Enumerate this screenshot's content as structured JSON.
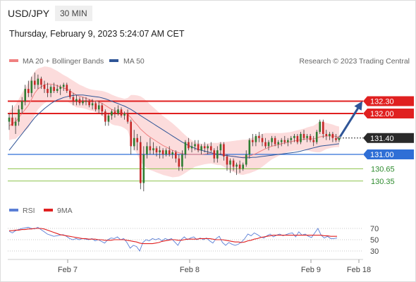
{
  "header": {
    "pair": "USD/JPY",
    "timeframe": "30 MIN",
    "timestamp": "Thursday, February 9, 2023 5:24:07 AM CET"
  },
  "legend": {
    "ma20": {
      "label": "MA 20 + Bollinger Bands",
      "color": "#f08080"
    },
    "ma50": {
      "label": "MA 50",
      "color": "#2f5597"
    },
    "credit": "Research © 2023 Trading Central"
  },
  "colors": {
    "bull": "#2e7d32",
    "bear": "#c62828",
    "band": "#fbd0d0",
    "resistance": "#e02020",
    "pivot": "#2f6fd6",
    "support": "#8bc34a",
    "support_text": "#2e8b2e",
    "current": "#2a2a2a",
    "arrow": "#2f5597",
    "rsi": "#5b7fd6",
    "rsi_ma": "#e02020"
  },
  "chart_data": [
    {
      "type": "candlestick",
      "title": "USD/JPY",
      "ylim": [
        129.95,
        133.05
      ],
      "x_ticks": [
        "Feb 7",
        "Feb 8",
        "Feb 9",
        "Feb 18"
      ],
      "ohlc": [
        [
          131.8,
          132.0,
          131.6,
          131.9
        ],
        [
          131.9,
          132.2,
          131.7,
          131.7
        ],
        [
          131.7,
          131.9,
          131.5,
          131.8
        ],
        [
          131.8,
          132.2,
          131.7,
          132.1
        ],
        [
          132.1,
          132.4,
          132.0,
          132.3
        ],
        [
          132.3,
          132.7,
          132.2,
          132.6
        ],
        [
          132.6,
          132.8,
          132.4,
          132.5
        ],
        [
          132.5,
          132.9,
          132.4,
          132.8
        ],
        [
          132.8,
          133.0,
          132.6,
          132.7
        ],
        [
          132.7,
          132.95,
          132.6,
          132.85
        ],
        [
          132.85,
          132.9,
          132.6,
          132.7
        ],
        [
          132.7,
          132.8,
          132.5,
          132.6
        ],
        [
          132.6,
          132.75,
          132.4,
          132.5
        ],
        [
          132.5,
          132.7,
          132.4,
          132.65
        ],
        [
          132.65,
          132.75,
          132.5,
          132.55
        ],
        [
          132.55,
          132.7,
          132.5,
          132.6
        ],
        [
          132.6,
          132.7,
          132.45,
          132.65
        ],
        [
          132.65,
          132.75,
          132.55,
          132.7
        ],
        [
          132.7,
          132.75,
          132.5,
          132.55
        ],
        [
          132.55,
          132.6,
          132.35,
          132.4
        ],
        [
          132.4,
          132.5,
          132.2,
          132.3
        ],
        [
          132.3,
          132.45,
          132.2,
          132.35
        ],
        [
          132.35,
          132.4,
          132.2,
          132.25
        ],
        [
          132.25,
          132.4,
          132.2,
          132.3
        ],
        [
          132.3,
          132.4,
          132.2,
          132.3
        ],
        [
          132.3,
          132.35,
          132.15,
          132.2
        ],
        [
          132.2,
          132.35,
          132.1,
          132.25
        ],
        [
          132.25,
          132.3,
          132.05,
          132.1
        ],
        [
          132.1,
          132.3,
          132.0,
          132.2
        ],
        [
          132.2,
          132.25,
          131.95,
          132.05
        ],
        [
          132.05,
          132.1,
          131.7,
          131.8
        ],
        [
          131.8,
          132.0,
          131.7,
          131.95
        ],
        [
          131.95,
          132.1,
          131.85,
          132.05
        ],
        [
          132.05,
          132.15,
          131.9,
          132.0
        ],
        [
          132.0,
          132.2,
          131.95,
          132.1
        ],
        [
          132.1,
          132.15,
          131.9,
          131.95
        ],
        [
          131.95,
          132.05,
          131.85,
          132.0
        ],
        [
          132.0,
          132.1,
          131.75,
          131.8
        ],
        [
          131.8,
          131.85,
          131.0,
          131.2
        ],
        [
          131.2,
          131.6,
          131.1,
          131.4
        ],
        [
          131.4,
          131.5,
          131.1,
          131.3
        ],
        [
          131.3,
          131.45,
          130.15,
          130.3
        ],
        [
          130.3,
          131.2,
          130.1,
          131.0
        ],
        [
          131.0,
          131.3,
          130.9,
          131.2
        ],
        [
          131.2,
          131.4,
          131.0,
          131.1
        ],
        [
          131.1,
          131.3,
          131.0,
          131.15
        ],
        [
          131.15,
          131.2,
          130.95,
          131.05
        ],
        [
          131.05,
          131.2,
          130.9,
          131.1
        ],
        [
          131.1,
          131.15,
          130.9,
          131.0
        ],
        [
          131.0,
          131.15,
          130.95,
          131.1
        ],
        [
          131.1,
          131.2,
          130.95,
          131.0
        ],
        [
          131.0,
          131.1,
          130.9,
          131.05
        ],
        [
          131.05,
          131.1,
          130.8,
          130.9
        ],
        [
          130.9,
          131.0,
          130.6,
          130.7
        ],
        [
          130.7,
          131.1,
          130.6,
          131.0
        ],
        [
          131.0,
          131.35,
          130.9,
          131.3
        ],
        [
          131.3,
          131.4,
          131.1,
          131.15
        ],
        [
          131.15,
          131.3,
          131.05,
          131.2
        ],
        [
          131.2,
          131.35,
          131.1,
          131.25
        ],
        [
          131.25,
          131.35,
          131.05,
          131.1
        ],
        [
          131.1,
          131.25,
          131.0,
          131.2
        ],
        [
          131.2,
          131.3,
          131.05,
          131.15
        ],
        [
          131.15,
          131.25,
          131.0,
          131.2
        ],
        [
          131.2,
          131.3,
          131.05,
          131.1
        ],
        [
          131.1,
          131.15,
          130.8,
          130.9
        ],
        [
          130.9,
          131.2,
          130.8,
          131.1
        ],
        [
          131.1,
          131.3,
          131.0,
          131.25
        ],
        [
          131.25,
          131.3,
          130.85,
          130.95
        ],
        [
          130.95,
          131.0,
          130.6,
          130.75
        ],
        [
          130.75,
          130.9,
          130.55,
          130.85
        ],
        [
          130.85,
          130.9,
          130.6,
          130.7
        ],
        [
          130.7,
          130.8,
          130.5,
          130.75
        ],
        [
          130.75,
          130.85,
          130.55,
          130.65
        ],
        [
          130.65,
          130.8,
          130.6,
          130.75
        ],
        [
          130.75,
          131.1,
          130.7,
          131.0
        ],
        [
          131.0,
          131.4,
          130.9,
          131.35
        ],
        [
          131.35,
          131.5,
          131.2,
          131.3
        ],
        [
          131.3,
          131.5,
          131.2,
          131.45
        ],
        [
          131.45,
          131.55,
          131.3,
          131.4
        ],
        [
          131.4,
          131.5,
          131.2,
          131.3
        ],
        [
          131.3,
          131.4,
          131.15,
          131.2
        ],
        [
          131.2,
          131.35,
          131.1,
          131.3
        ],
        [
          131.3,
          131.45,
          131.2,
          131.4
        ],
        [
          131.4,
          131.45,
          131.2,
          131.25
        ],
        [
          131.25,
          131.35,
          131.15,
          131.3
        ],
        [
          131.3,
          131.4,
          131.2,
          131.35
        ],
        [
          131.35,
          131.45,
          131.25,
          131.3
        ],
        [
          131.3,
          131.4,
          131.2,
          131.35
        ],
        [
          131.35,
          131.45,
          131.25,
          131.4
        ],
        [
          131.4,
          131.5,
          131.3,
          131.45
        ],
        [
          131.45,
          131.5,
          131.25,
          131.3
        ],
        [
          131.3,
          131.55,
          131.25,
          131.5
        ],
        [
          131.5,
          131.6,
          131.35,
          131.4
        ],
        [
          131.4,
          131.5,
          131.3,
          131.45
        ],
        [
          131.45,
          131.5,
          131.3,
          131.35
        ],
        [
          131.35,
          131.45,
          131.2,
          131.3
        ],
        [
          131.3,
          131.6,
          131.25,
          131.55
        ],
        [
          131.55,
          131.85,
          131.5,
          131.8
        ],
        [
          131.8,
          131.85,
          131.4,
          131.5
        ],
        [
          131.5,
          131.6,
          131.35,
          131.45
        ],
        [
          131.45,
          131.55,
          131.35,
          131.5
        ],
        [
          131.5,
          131.55,
          131.3,
          131.4
        ],
        [
          131.4,
          131.5,
          131.3,
          131.35
        ],
        [
          131.35,
          131.45,
          131.3,
          131.4
        ]
      ],
      "ma20": [
        131.7,
        131.75,
        131.8,
        131.9,
        132.0,
        132.1,
        132.2,
        132.35,
        132.5,
        132.6,
        132.65,
        132.7,
        132.72,
        132.72,
        132.7,
        132.68,
        132.65,
        132.62,
        132.6,
        132.55,
        132.5,
        132.45,
        132.42,
        132.4,
        132.37,
        132.34,
        132.32,
        132.3,
        132.28,
        132.25,
        132.2,
        132.15,
        132.1,
        132.07,
        132.05,
        132.03,
        132.0,
        131.98,
        131.9,
        131.8,
        131.72,
        131.62,
        131.55,
        131.48,
        131.42,
        131.37,
        131.32,
        131.27,
        131.22,
        131.18,
        131.14,
        131.1,
        131.07,
        131.04,
        131.02,
        131.01,
        131.0,
        131.0,
        131.0,
        131.0,
        131.0,
        131.01,
        131.02,
        131.03,
        131.02,
        131.01,
        131.02,
        131.0,
        130.98,
        130.96,
        130.95,
        130.94,
        130.93,
        130.93,
        130.94,
        130.96,
        130.99,
        131.02,
        131.06,
        131.1,
        131.14,
        131.17,
        131.2,
        131.22,
        131.24,
        131.26,
        131.28,
        131.3,
        131.31,
        131.33,
        131.34,
        131.36,
        131.37,
        131.38,
        131.38,
        131.38,
        131.4,
        131.43,
        131.44,
        131.45,
        131.45,
        131.45,
        131.44,
        131.43
      ],
      "ma50": [
        131.1,
        131.2,
        131.3,
        131.4,
        131.5,
        131.6,
        131.7,
        131.8,
        131.9,
        131.98,
        132.05,
        132.12,
        132.18,
        132.24,
        132.29,
        132.33,
        132.36,
        132.39,
        132.41,
        132.43,
        132.44,
        132.45,
        132.45,
        132.45,
        132.44,
        132.43,
        132.42,
        132.41,
        132.4,
        132.38,
        132.36,
        132.33,
        132.3,
        132.27,
        132.24,
        132.21,
        132.18,
        132.14,
        132.1,
        132.05,
        132.0,
        131.95,
        131.9,
        131.85,
        131.8,
        131.75,
        131.7,
        131.65,
        131.6,
        131.55,
        131.5,
        131.45,
        131.4,
        131.35,
        131.3,
        131.26,
        131.22,
        131.18,
        131.15,
        131.12,
        131.1,
        131.08,
        131.06,
        131.04,
        131.02,
        131.0,
        130.99,
        130.98,
        130.97,
        130.96,
        130.95,
        130.94,
        130.93,
        130.92,
        130.92,
        130.92,
        130.93,
        130.93,
        130.94,
        130.95,
        130.96,
        130.97,
        130.98,
        130.99,
        131.0,
        131.01,
        131.02,
        131.03,
        131.04,
        131.05,
        131.06,
        131.08,
        131.1,
        131.12,
        131.14,
        131.16,
        131.18,
        131.2,
        131.21,
        131.22,
        131.23,
        131.24,
        131.25,
        131.26
      ],
      "band_width": [
        0.35,
        0.38,
        0.42,
        0.45,
        0.5,
        0.52,
        0.55,
        0.55,
        0.53,
        0.5,
        0.47,
        0.45,
        0.42,
        0.4,
        0.38,
        0.36,
        0.34,
        0.32,
        0.3,
        0.3,
        0.3,
        0.3,
        0.28,
        0.27,
        0.26,
        0.26,
        0.26,
        0.27,
        0.28,
        0.3,
        0.33,
        0.35,
        0.36,
        0.36,
        0.35,
        0.35,
        0.36,
        0.4,
        0.55,
        0.65,
        0.72,
        0.8,
        0.82,
        0.82,
        0.8,
        0.78,
        0.76,
        0.74,
        0.72,
        0.7,
        0.68,
        0.66,
        0.62,
        0.58,
        0.52,
        0.46,
        0.4,
        0.35,
        0.3,
        0.28,
        0.26,
        0.25,
        0.25,
        0.25,
        0.26,
        0.27,
        0.28,
        0.3,
        0.33,
        0.36,
        0.38,
        0.4,
        0.42,
        0.43,
        0.42,
        0.42,
        0.42,
        0.42,
        0.42,
        0.4,
        0.38,
        0.35,
        0.32,
        0.3,
        0.28,
        0.26,
        0.25,
        0.24,
        0.24,
        0.24,
        0.25,
        0.25,
        0.26,
        0.28,
        0.3,
        0.32,
        0.35,
        0.38,
        0.35,
        0.32,
        0.3,
        0.28,
        0.26,
        0.25
      ],
      "levels": [
        {
          "value": 132.3,
          "label": "132.30",
          "kind": "resistance"
        },
        {
          "value": 132.0,
          "label": "132.00",
          "kind": "resistance"
        },
        {
          "value": 131.4,
          "label": "131.40",
          "kind": "current"
        },
        {
          "value": 131.0,
          "label": "131.00",
          "kind": "pivot"
        },
        {
          "value": 130.65,
          "label": "130.65",
          "kind": "support"
        },
        {
          "value": 130.35,
          "label": "130.35",
          "kind": "support"
        }
      ],
      "target_arrow": {
        "from": 131.4,
        "to": 132.3
      }
    },
    {
      "type": "line",
      "title": "RSI",
      "ylim": [
        15,
        85
      ],
      "yticks": [
        70,
        50,
        30
      ],
      "series": [
        {
          "name": "RSI",
          "values": [
            65,
            62,
            66,
            68,
            70,
            71,
            72,
            70,
            69,
            72,
            68,
            64,
            60,
            58,
            56,
            57,
            58,
            59,
            56,
            52,
            50,
            52,
            50,
            52,
            51,
            50,
            52,
            48,
            50,
            47,
            44,
            50,
            53,
            52,
            55,
            50,
            52,
            45,
            35,
            40,
            38,
            30,
            45,
            50,
            48,
            52,
            50,
            52,
            48,
            52,
            50,
            52,
            46,
            40,
            50,
            55,
            50,
            53,
            55,
            50,
            53,
            50,
            53,
            48,
            44,
            52,
            56,
            45,
            40,
            45,
            42,
            40,
            42,
            46,
            52,
            60,
            57,
            62,
            59,
            55,
            53,
            57,
            60,
            55,
            58,
            60,
            57,
            59,
            61,
            62,
            55,
            64,
            58,
            60,
            56,
            54,
            62,
            70,
            58,
            53,
            56,
            52,
            52,
            53
          ]
        },
        {
          "name": "9MA",
          "values": [
            66,
            66,
            67,
            67,
            68,
            68,
            69,
            69,
            70,
            70,
            70,
            69,
            67,
            65,
            63,
            61,
            59,
            58,
            57,
            56,
            55,
            54,
            53,
            52,
            52,
            51,
            51,
            51,
            50,
            50,
            49,
            49,
            49,
            50,
            50,
            50,
            50,
            49,
            48,
            47,
            46,
            44,
            43,
            43,
            43,
            43,
            44,
            45,
            47,
            48,
            49,
            50,
            50,
            49,
            49,
            50,
            51,
            51,
            51,
            51,
            52,
            52,
            52,
            52,
            51,
            50,
            50,
            50,
            49,
            48,
            47,
            46,
            46,
            45,
            46,
            48,
            49,
            51,
            52,
            54,
            55,
            56,
            57,
            58,
            58,
            58,
            58,
            58,
            58,
            58,
            58,
            58,
            58,
            58,
            58,
            58,
            58,
            58,
            58,
            57,
            57,
            56,
            56,
            56
          ]
        }
      ]
    }
  ]
}
